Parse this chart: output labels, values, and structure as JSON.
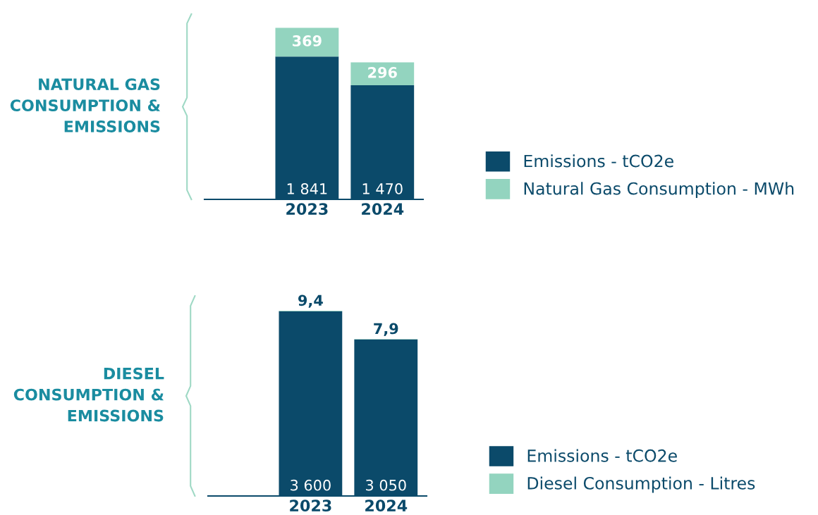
{
  "chart_data": [
    {
      "type": "bar",
      "title": "NATURAL GAS\nCONSUMPTION &\nEMISSIONS",
      "categories": [
        "2023",
        "2024"
      ],
      "stacked": true,
      "tick_labels": "x",
      "grid": false,
      "legend": "right",
      "series": [
        {
          "name": "Emissions - tCO2e",
          "color": "#0b4a6a",
          "values": [
            1841,
            1470
          ],
          "value_labels": [
            "1 841",
            "1 470"
          ]
        },
        {
          "name": "Natural Gas Consumption - MWh",
          "color": "#93d4bf",
          "values": [
            369,
            296
          ],
          "value_labels": [
            "369",
            "296"
          ]
        }
      ]
    },
    {
      "type": "bar",
      "title": "DIESEL\nCONSUMPTION &\nEMISSIONS",
      "categories": [
        "2023",
        "2024"
      ],
      "stacked": true,
      "tick_labels": "x",
      "grid": false,
      "legend": "right",
      "series": [
        {
          "name": "Emissions - tCO2e",
          "color": "#0b4a6a",
          "values": [
            3600,
            3050
          ],
          "value_labels": [
            "3 600",
            "3 050"
          ]
        },
        {
          "name": "Diesel Consumption - Litres",
          "color": "#93d4bf",
          "values": [
            9.4,
            7.9
          ],
          "value_labels": [
            "9,4",
            "7,9"
          ]
        }
      ]
    }
  ]
}
